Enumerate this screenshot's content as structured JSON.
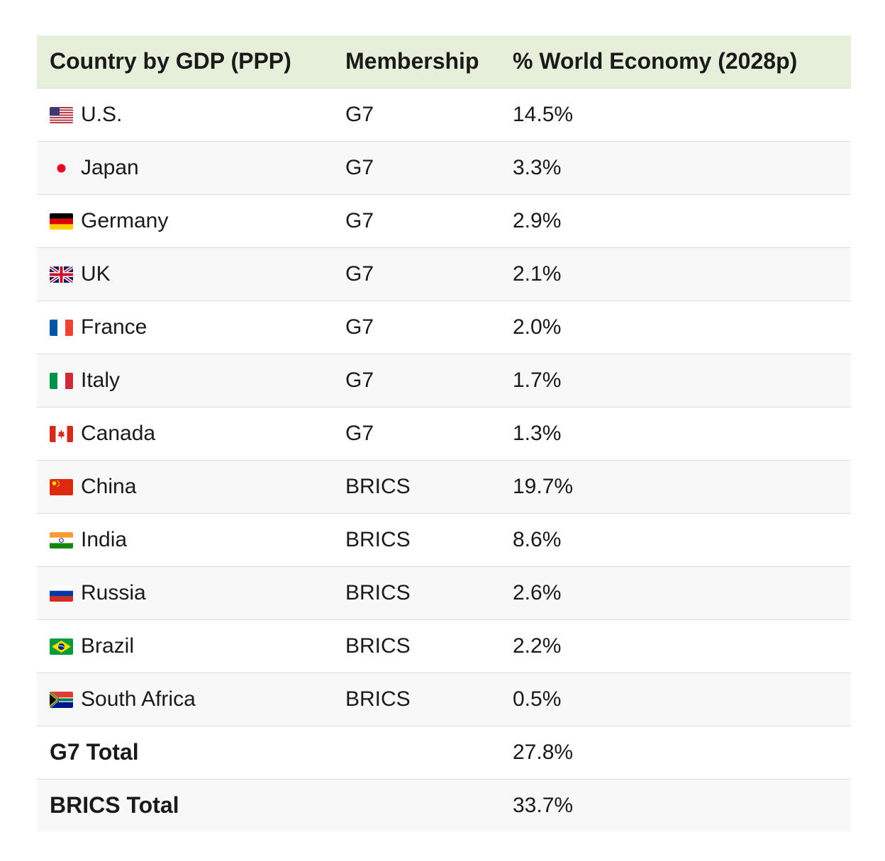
{
  "table": {
    "headers": [
      "Country by GDP (PPP)",
      "Membership",
      "% World Economy (2028p)"
    ],
    "rows": [
      {
        "country": "U.S.",
        "flag": "us-flag-icon",
        "membership": "G7",
        "share": "14.5%"
      },
      {
        "country": "Japan",
        "flag": "japan-flag-icon",
        "membership": "G7",
        "share": "3.3%"
      },
      {
        "country": "Germany",
        "flag": "germany-flag-icon",
        "membership": "G7",
        "share": "2.9%"
      },
      {
        "country": "UK",
        "flag": "uk-flag-icon",
        "membership": "G7",
        "share": "2.1%"
      },
      {
        "country": "France",
        "flag": "france-flag-icon",
        "membership": "G7",
        "share": "2.0%"
      },
      {
        "country": "Italy",
        "flag": "italy-flag-icon",
        "membership": "G7",
        "share": "1.7%"
      },
      {
        "country": "Canada",
        "flag": "canada-flag-icon",
        "membership": "G7",
        "share": "1.3%"
      },
      {
        "country": "China",
        "flag": "china-flag-icon",
        "membership": "BRICS",
        "share": "19.7%"
      },
      {
        "country": "India",
        "flag": "india-flag-icon",
        "membership": "BRICS",
        "share": "8.6%"
      },
      {
        "country": "Russia",
        "flag": "russia-flag-icon",
        "membership": "BRICS",
        "share": "2.6%"
      },
      {
        "country": "Brazil",
        "flag": "brazil-flag-icon",
        "membership": "BRICS",
        "share": "2.2%"
      },
      {
        "country": "South Africa",
        "flag": "south-africa-flag-icon",
        "membership": "BRICS",
        "share": "0.5%"
      }
    ],
    "totals": [
      {
        "label": "G7 Total",
        "membership": "",
        "share": "27.8%"
      },
      {
        "label": "BRICS Total",
        "membership": "",
        "share": "33.7%"
      }
    ]
  },
  "colors": {
    "header_bg": "#e6efd9",
    "row_alt_bg": "#f8f8f8",
    "divider": "#dcdcdc"
  }
}
